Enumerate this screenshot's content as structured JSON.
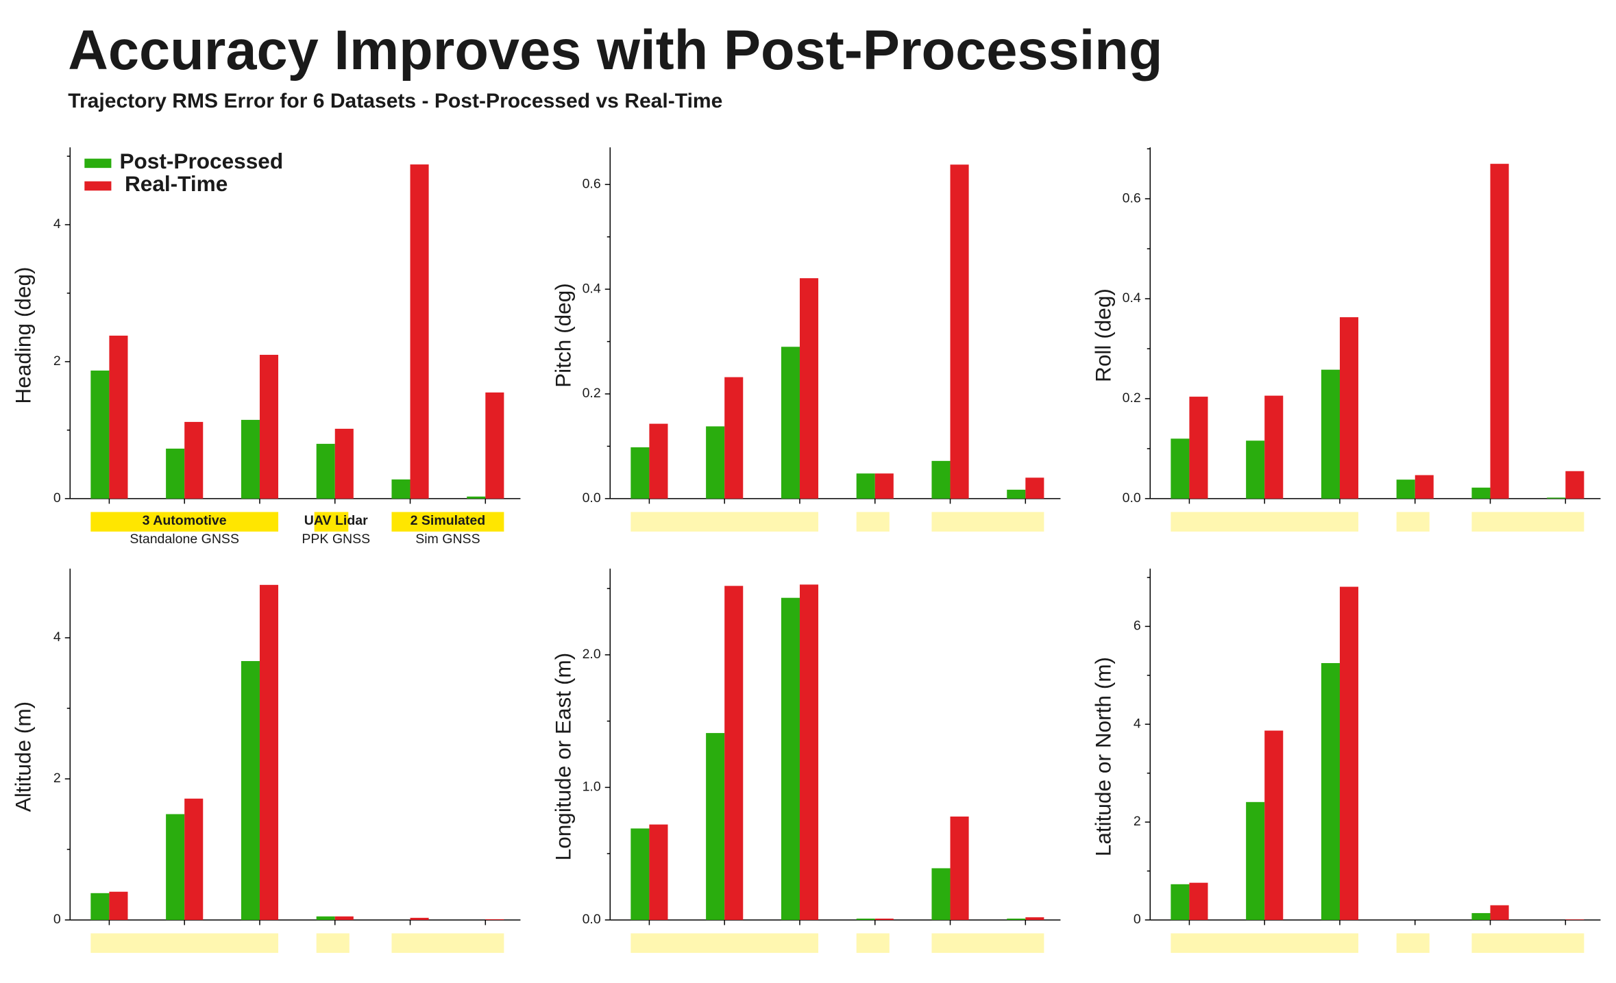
{
  "title": "Accuracy Improves with Post-Processing",
  "subtitle": "Trajectory RMS Error for 6 Datasets - Post-Processed vs Real-Time",
  "groups": [
    {
      "label": "3 Automotive",
      "sublabel": "Standalone GNSS"
    },
    {
      "label": "UAV Lidar",
      "sublabel": "PPK GNSS"
    },
    {
      "label": "2 Simulated",
      "sublabel": "Sim GNSS"
    }
  ],
  "chart_data": [
    {
      "type": "bar",
      "ylabel": "Heading (deg)",
      "categories": [
        null,
        null,
        null,
        null,
        null,
        null
      ],
      "series": [
        {
          "name": "Post-Processed",
          "color": "#2aad0e",
          "values": [
            1.87,
            0.73,
            1.15,
            0.8,
            0.28,
            0.03
          ]
        },
        {
          "name": "Real-Time",
          "color": "#e31e24",
          "values": [
            2.38,
            1.12,
            2.1,
            1.02,
            4.88,
            1.55
          ]
        }
      ],
      "ylim": [
        0,
        5.13
      ],
      "yticks": [
        0,
        2,
        4
      ],
      "yminorticks": [
        1,
        3,
        5
      ]
    },
    {
      "type": "bar",
      "ylabel": "Pitch (deg)",
      "categories": [
        null,
        null,
        null,
        null,
        null,
        null
      ],
      "series": [
        {
          "color": "#2aad0e",
          "values": [
            0.098,
            0.138,
            0.29,
            0.048,
            0.072,
            0.017
          ]
        },
        {
          "color": "#e31e24",
          "values": [
            0.143,
            0.232,
            0.421,
            0.048,
            0.638,
            0.04
          ]
        }
      ],
      "ylim": [
        0,
        0.671
      ],
      "yticks": [
        {
          "value": 0,
          "label": "0.0"
        },
        0.2,
        0.4,
        0.6
      ],
      "yminorticks": [
        0.1,
        0.3,
        0.5
      ]
    },
    {
      "type": "bar",
      "ylabel": "Roll (deg)",
      "categories": [
        null,
        null,
        null,
        null,
        null,
        null
      ],
      "series": [
        {
          "color": "#2aad0e",
          "values": [
            0.12,
            0.116,
            0.258,
            0.038,
            0.022,
            0.002
          ]
        },
        {
          "color": "#e31e24",
          "values": [
            0.204,
            0.206,
            0.363,
            0.047,
            0.67,
            0.055
          ]
        }
      ],
      "ylim": [
        0,
        0.703
      ],
      "yticks": [
        {
          "value": 0,
          "label": "0.0"
        },
        0.2,
        0.4,
        0.6
      ],
      "yminorticks": [
        0.1,
        0.3,
        0.5,
        0.7
      ]
    },
    {
      "type": "bar",
      "ylabel": "Altitude (m)",
      "categories": [
        null,
        null,
        null,
        null,
        null,
        null
      ],
      "series": [
        {
          "color": "#2aad0e",
          "values": [
            0.38,
            1.5,
            3.67,
            0.05,
            0.0,
            0.0
          ]
        },
        {
          "color": "#e31e24",
          "values": [
            0.4,
            1.72,
            4.75,
            0.05,
            0.03,
            0.01
          ]
        }
      ],
      "ylim": [
        0,
        4.98
      ],
      "yticks": [
        0,
        2,
        4
      ],
      "yminorticks": [
        1,
        3
      ]
    },
    {
      "type": "bar",
      "ylabel": "Longitude or East (m)",
      "categories": [
        null,
        null,
        null,
        null,
        null,
        null
      ],
      "series": [
        {
          "color": "#2aad0e",
          "values": [
            0.69,
            1.41,
            2.43,
            0.01,
            0.39,
            0.01
          ]
        },
        {
          "color": "#e31e24",
          "values": [
            0.72,
            2.52,
            2.53,
            0.01,
            0.78,
            0.02
          ]
        }
      ],
      "ylim": [
        0,
        2.65
      ],
      "yticks": [
        {
          "value": 0,
          "label": "0.0"
        },
        {
          "value": 1,
          "label": "1.0"
        },
        {
          "value": 2,
          "label": "2.0"
        }
      ],
      "yminorticks": [
        0.5,
        1.5,
        2.5
      ]
    },
    {
      "type": "bar",
      "ylabel": "Latitude or North (m)",
      "categories": [
        null,
        null,
        null,
        null,
        null,
        null
      ],
      "series": [
        {
          "color": "#2aad0e",
          "values": [
            0.73,
            2.41,
            5.25,
            0.0,
            0.14,
            0.0
          ]
        },
        {
          "color": "#e31e24",
          "values": [
            0.76,
            3.87,
            6.81,
            0.0,
            0.3,
            0.01
          ]
        }
      ],
      "ylim": [
        0,
        7.18
      ],
      "yticks": [
        0,
        2,
        4,
        6
      ],
      "yminorticks": [
        1,
        3,
        5,
        7
      ]
    }
  ]
}
